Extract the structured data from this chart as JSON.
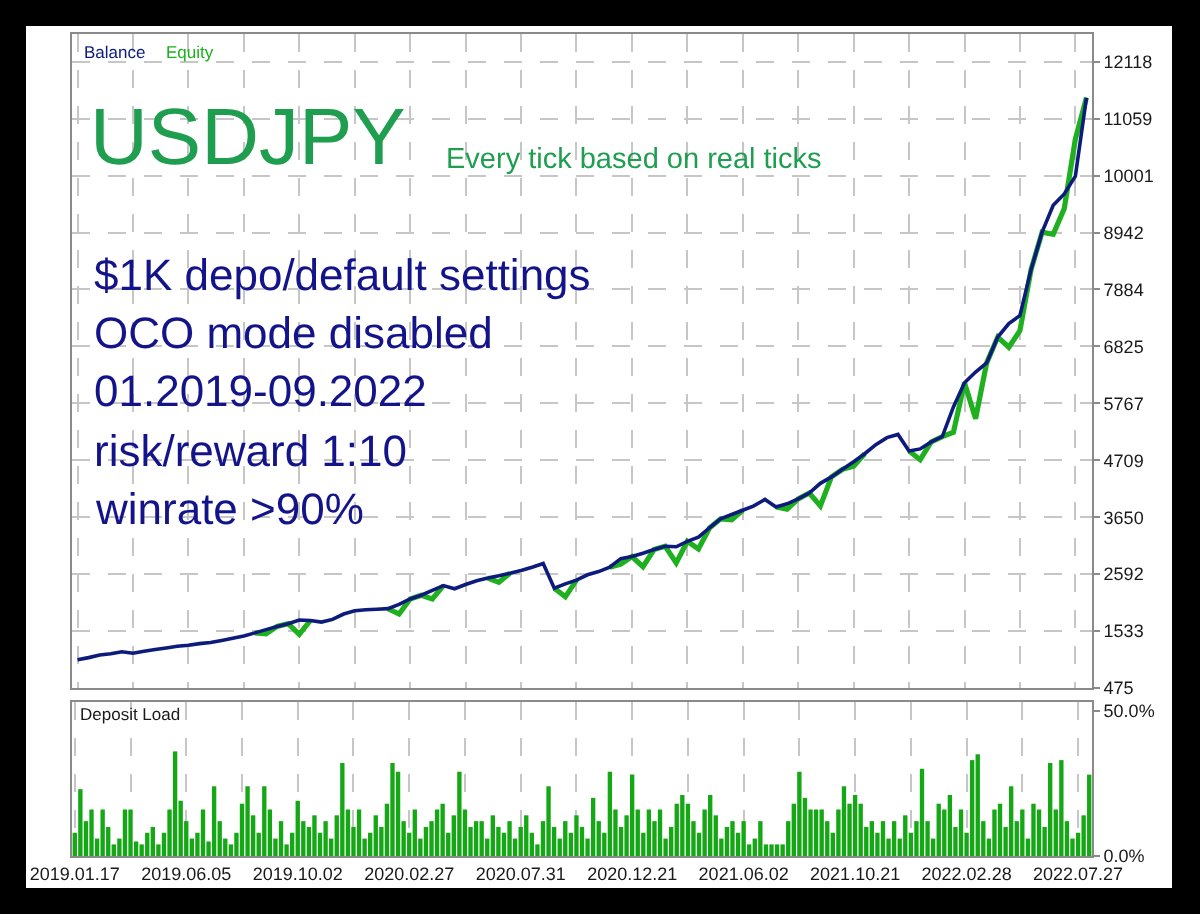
{
  "chart_data": [
    {
      "type": "line",
      "title": "USDJPY",
      "subtitle": "Every tick based on real ticks",
      "annotations": [
        "$1K depo/default settings",
        "OCO mode disabled",
        "01.2019-09.2022",
        "risk/reward 1:10",
        "winrate >90%"
      ],
      "categories": [
        "2019.01.17",
        null,
        null,
        null,
        null,
        null,
        null,
        null,
        null,
        null,
        "2019.06.05",
        null,
        null,
        null,
        null,
        null,
        null,
        null,
        null,
        null,
        "2019.10.02",
        null,
        null,
        null,
        null,
        null,
        null,
        null,
        null,
        null,
        "2020.02.27",
        null,
        null,
        null,
        null,
        null,
        null,
        null,
        null,
        null,
        "2020.07.31",
        null,
        null,
        null,
        null,
        null,
        null,
        null,
        null,
        null,
        "2020.12.21",
        null,
        null,
        null,
        null,
        null,
        null,
        null,
        null,
        null,
        "2021.06.02",
        null,
        null,
        null,
        null,
        null,
        null,
        null,
        null,
        null,
        "2021.10.21",
        null,
        null,
        null,
        null,
        null,
        null,
        null,
        null,
        null,
        "2022.02.28",
        null,
        null,
        null,
        null,
        null,
        null,
        null,
        null,
        null,
        "2022.07.27",
        null
      ],
      "series": [
        {
          "name": "Balance",
          "color": "#0d1c7c",
          "values": [
            1000,
            1040,
            1090,
            1110,
            1150,
            1120,
            1160,
            1190,
            1220,
            1250,
            1270,
            1300,
            1320,
            1360,
            1400,
            1440,
            1500,
            1560,
            1620,
            1670,
            1740,
            1730,
            1700,
            1750,
            1850,
            1910,
            1930,
            1940,
            1950,
            2030,
            2130,
            2200,
            2290,
            2380,
            2320,
            2400,
            2470,
            2520,
            2560,
            2610,
            2660,
            2720,
            2790,
            2330,
            2410,
            2480,
            2580,
            2640,
            2720,
            2880,
            2920,
            2980,
            3050,
            3110,
            3100,
            3200,
            3280,
            3450,
            3620,
            3700,
            3780,
            3860,
            3980,
            3840,
            3900,
            3990,
            4100,
            4280,
            4400,
            4540,
            4680,
            4830,
            5000,
            5130,
            5190,
            4880,
            4920,
            5050,
            5150,
            5700,
            6150,
            6350,
            6520,
            7000,
            7250,
            7400,
            8250,
            8950,
            9450,
            9660,
            9990,
            11450
          ]
        },
        {
          "name": "Equity",
          "color": "#1fb01f",
          "values": [
            null,
            null,
            null,
            null,
            null,
            null,
            null,
            null,
            null,
            null,
            null,
            null,
            null,
            null,
            null,
            null,
            1500,
            1480,
            1620,
            1670,
            1470,
            1730,
            null,
            null,
            null,
            null,
            null,
            null,
            1950,
            1850,
            2130,
            2200,
            2130,
            2380,
            null,
            null,
            null,
            2520,
            2440,
            2610,
            null,
            null,
            null,
            2330,
            2170,
            2480,
            null,
            null,
            2720,
            2780,
            2920,
            2730,
            3050,
            3110,
            2800,
            3200,
            3060,
            3450,
            3620,
            3600,
            3780,
            null,
            null,
            3840,
            3800,
            3990,
            4100,
            3860,
            4400,
            4540,
            4600,
            4830,
            null,
            null,
            null,
            4880,
            4720,
            5050,
            5150,
            5230,
            6150,
            5480,
            6520,
            7000,
            6810,
            7120,
            8250,
            8950,
            8910,
            9390,
            10680,
            11450
          ]
        }
      ],
      "ylim": [
        475,
        12634
      ],
      "yticks": [
        475,
        1533,
        2592,
        3650,
        4709,
        5767,
        6825,
        7884,
        8942,
        10001,
        11059,
        12118
      ],
      "grid": true,
      "legend": "top left",
      "tick_labels": "y"
    },
    {
      "type": "bar",
      "title": "Deposit Load",
      "categories": [
        "2019.01.17",
        null,
        null,
        null,
        null,
        null,
        null,
        null,
        null,
        null,
        null,
        null,
        null,
        null,
        null,
        null,
        null,
        null,
        null,
        null,
        "2019.06.05",
        null,
        null,
        null,
        null,
        null,
        null,
        null,
        null,
        null,
        null,
        null,
        null,
        null,
        null,
        null,
        null,
        null,
        null,
        null,
        "2019.10.02",
        null,
        null,
        null,
        null,
        null,
        null,
        null,
        null,
        null,
        null,
        null,
        null,
        null,
        null,
        null,
        null,
        null,
        null,
        null,
        "2020.02.27",
        null,
        null,
        null,
        null,
        null,
        null,
        null,
        null,
        null,
        null,
        null,
        null,
        null,
        null,
        null,
        null,
        null,
        null,
        null,
        "2020.07.31",
        null,
        null,
        null,
        null,
        null,
        null,
        null,
        null,
        null,
        null,
        null,
        null,
        null,
        null,
        null,
        null,
        null,
        null,
        null,
        "2020.12.21",
        null,
        null,
        null,
        null,
        null,
        null,
        null,
        null,
        null,
        null,
        null,
        null,
        null,
        null,
        null,
        null,
        null,
        null,
        null,
        "2021.06.02",
        null,
        null,
        null,
        null,
        null,
        null,
        null,
        null,
        null,
        null,
        null,
        null,
        null,
        null,
        null,
        null,
        null,
        null,
        null,
        "2021.10.21",
        null,
        null,
        null,
        null,
        null,
        null,
        null,
        null,
        null,
        null,
        null,
        null,
        null,
        null,
        null,
        null,
        null,
        null,
        null,
        "2022.02.28",
        null,
        null,
        null,
        null,
        null,
        null,
        null,
        null,
        null,
        null,
        null,
        null,
        null,
        null,
        null,
        null,
        null,
        null,
        null,
        "2022.07.27",
        null,
        null
      ],
      "values": [
        8,
        23,
        12,
        16,
        6,
        16,
        10,
        4,
        6,
        16,
        16,
        5,
        4,
        8,
        10,
        4,
        8,
        16,
        36,
        19,
        12,
        6,
        8,
        16,
        5,
        24,
        12,
        6,
        4,
        8,
        18,
        24,
        14,
        8,
        24,
        16,
        6,
        12,
        4,
        8,
        19,
        12,
        10,
        14,
        8,
        12,
        6,
        14,
        32,
        16,
        10,
        16,
        6,
        8,
        14,
        10,
        18,
        32,
        29,
        12,
        8,
        16,
        6,
        10,
        12,
        16,
        18,
        8,
        14,
        29,
        16,
        10,
        12,
        12,
        6,
        14,
        10,
        8,
        12,
        6,
        10,
        14,
        8,
        4,
        12,
        24,
        10,
        6,
        12,
        8,
        14,
        10,
        6,
        20,
        12,
        8,
        29,
        16,
        10,
        14,
        28,
        16,
        8,
        16,
        12,
        16,
        6,
        10,
        18,
        21,
        18,
        12,
        8,
        16,
        21,
        14,
        6,
        10,
        12,
        8,
        12,
        4,
        6,
        12,
        4,
        4,
        4,
        4,
        12,
        18,
        29,
        20,
        16,
        16,
        16,
        12,
        8,
        16,
        24,
        18,
        21,
        18,
        10,
        12,
        8,
        12,
        6,
        12,
        6,
        14,
        8,
        12,
        30,
        12,
        6,
        18,
        16,
        21,
        10,
        16,
        8,
        33,
        35,
        12,
        6,
        16,
        18,
        10,
        24,
        12,
        16,
        6,
        18,
        16,
        10,
        32,
        16,
        33,
        12,
        6,
        8,
        14,
        28
      ],
      "color": "#14a814",
      "ylim": [
        0,
        53
      ],
      "yticks": [
        {
          "value": 0,
          "label": "0.0%"
        },
        {
          "value": 50,
          "label": "50.0%"
        }
      ],
      "grid": "x"
    }
  ]
}
